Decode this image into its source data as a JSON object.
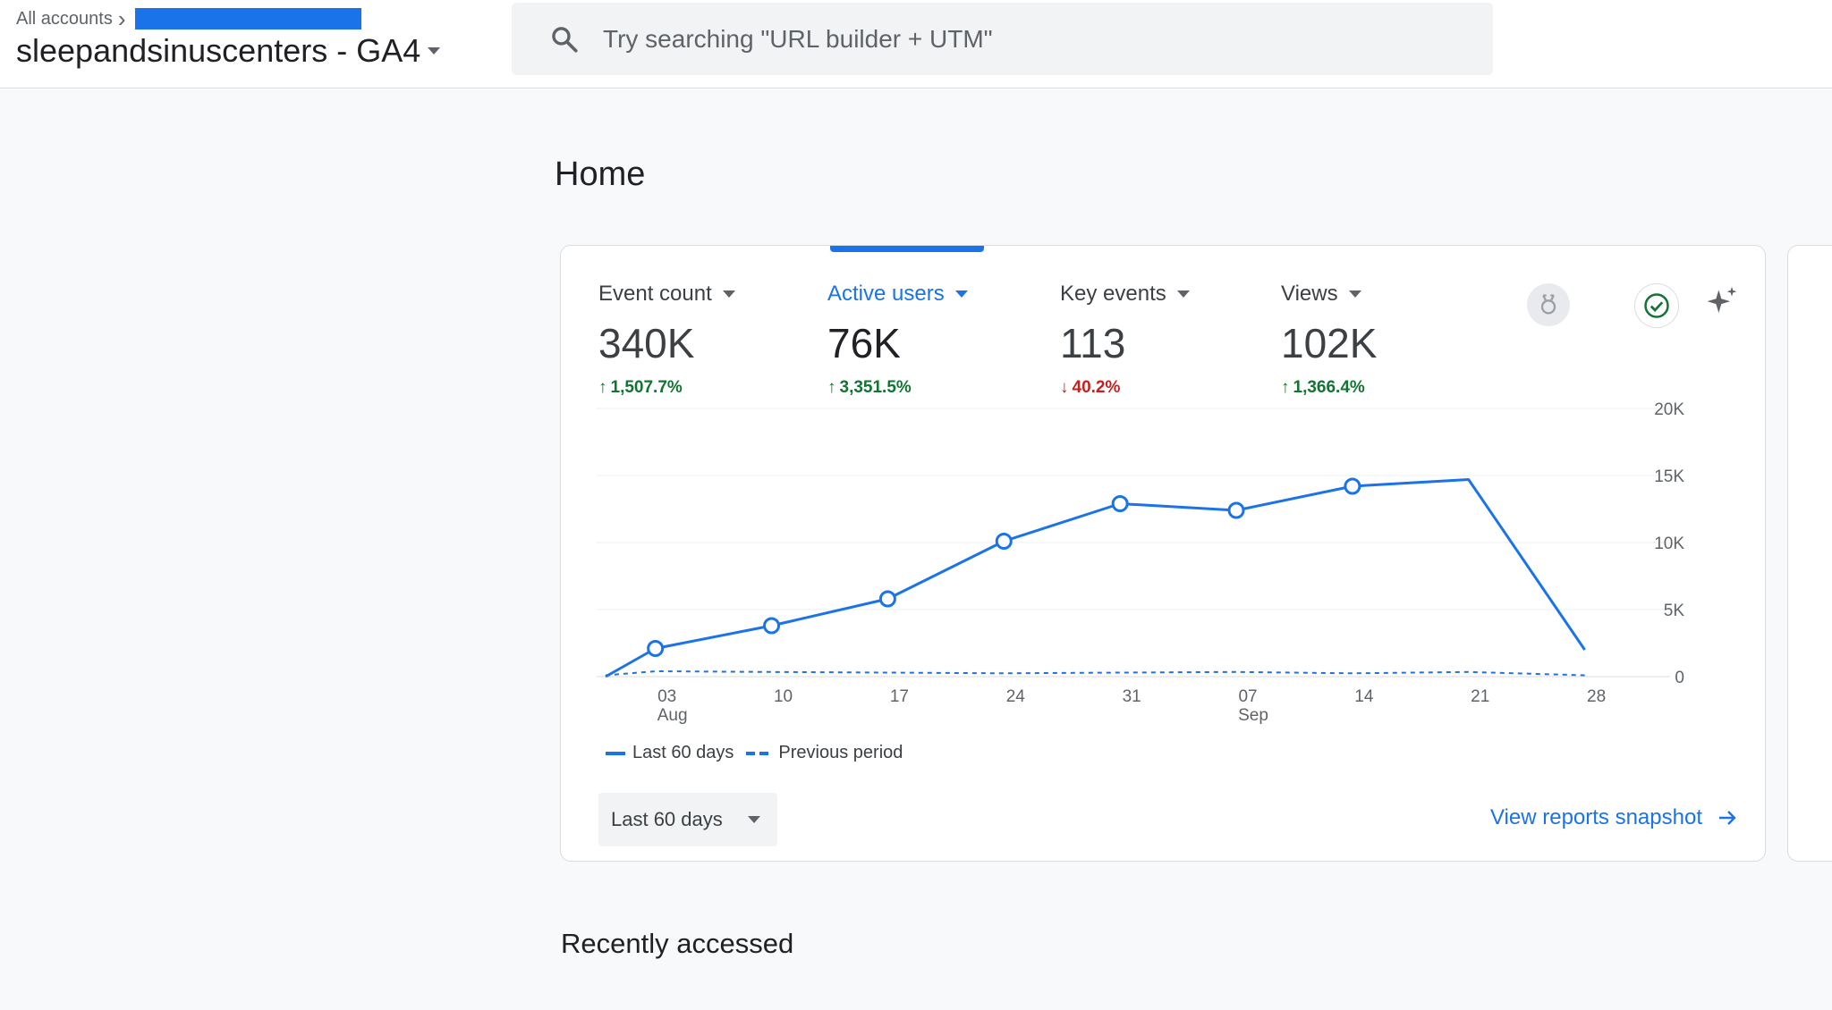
{
  "header": {
    "breadcrumb": "All accounts",
    "property": "sleepandsinuscenters - GA4",
    "search_placeholder": "Try searching \"URL builder + UTM\""
  },
  "page": {
    "title": "Home",
    "recent_title": "Recently accessed"
  },
  "card": {
    "metrics": [
      {
        "label": "Event count",
        "value": "340K",
        "change": "1,507.7%",
        "direction": "up"
      },
      {
        "label": "Active users",
        "value": "76K",
        "change": "3,351.5%",
        "direction": "up",
        "active": true
      },
      {
        "label": "Key events",
        "value": "113",
        "change": "40.2%",
        "direction": "down"
      },
      {
        "label": "Views",
        "value": "102K",
        "change": "1,366.4%",
        "direction": "up"
      }
    ],
    "icons": [
      "medal-icon",
      "check-circle-icon",
      "sparkle-icon"
    ],
    "legend": {
      "current": "Last 60 days",
      "previous": "Previous period"
    },
    "range_button": "Last 60 days",
    "snapshot_link": "View reports snapshot"
  },
  "chart_data": {
    "type": "line",
    "x_ticks": [
      {
        "top": "03",
        "bottom": "Aug"
      },
      {
        "top": "10",
        "bottom": ""
      },
      {
        "top": "17",
        "bottom": ""
      },
      {
        "top": "24",
        "bottom": ""
      },
      {
        "top": "31",
        "bottom": ""
      },
      {
        "top": "07",
        "bottom": "Sep"
      },
      {
        "top": "14",
        "bottom": ""
      },
      {
        "top": "21",
        "bottom": ""
      },
      {
        "top": "28",
        "bottom": ""
      }
    ],
    "y_ticks": [
      "0",
      "5K",
      "10K",
      "15K",
      "20K"
    ],
    "ylim": [
      0,
      20000
    ],
    "xlim_days": [
      0,
      62
    ],
    "series": [
      {
        "name": "Last 60 days",
        "style": "solid",
        "color": "#1a73e8",
        "points": [
          {
            "x": 0,
            "y": 0,
            "marker": false
          },
          {
            "x": 3,
            "y": 2100,
            "marker": true
          },
          {
            "x": 10,
            "y": 3800,
            "marker": true
          },
          {
            "x": 17,
            "y": 5800,
            "marker": true
          },
          {
            "x": 24,
            "y": 10100,
            "marker": true
          },
          {
            "x": 31,
            "y": 12900,
            "marker": true
          },
          {
            "x": 38,
            "y": 12400,
            "marker": true
          },
          {
            "x": 45,
            "y": 14200,
            "marker": true
          },
          {
            "x": 52,
            "y": 14700,
            "marker": false
          },
          {
            "x": 59,
            "y": 2000,
            "marker": false
          }
        ]
      },
      {
        "name": "Previous period",
        "style": "dashed",
        "color": "#1a73e8",
        "points": [
          {
            "x": 0,
            "y": 100
          },
          {
            "x": 3,
            "y": 400
          },
          {
            "x": 10,
            "y": 350
          },
          {
            "x": 17,
            "y": 300
          },
          {
            "x": 24,
            "y": 250
          },
          {
            "x": 31,
            "y": 300
          },
          {
            "x": 38,
            "y": 350
          },
          {
            "x": 45,
            "y": 250
          },
          {
            "x": 52,
            "y": 350
          },
          {
            "x": 59,
            "y": 100
          }
        ]
      }
    ]
  }
}
